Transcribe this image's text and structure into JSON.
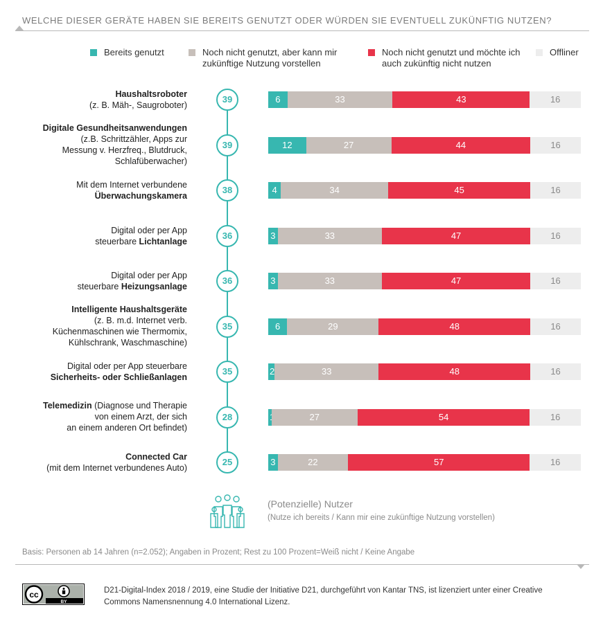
{
  "title": "WELCHE DIESER GERÄTE HABEN SIE BEREITS GENUTZT ODER WÜRDEN SIE EVENTUELL ZUKÜNFTIG NUTZEN?",
  "colors": {
    "bereits": "#37b7b0",
    "noch_nicht_vorstellbar": "#c7bfba",
    "nicht_nutzen": "#e8344a",
    "offliner": "#ededed",
    "accent": "#37b7b0"
  },
  "legend": [
    {
      "label": "Bereits genutzt"
    },
    {
      "label": "Noch nicht genutzt, aber kann mir zukünftige Nutzung vorstellen"
    },
    {
      "label": "Noch nicht genutzt und möchte ich auch zukünftig nicht nutzen"
    },
    {
      "label": "Offliner"
    }
  ],
  "chart_data": {
    "type": "bar",
    "orientation": "horizontal",
    "stacked": true,
    "unit": "Prozent",
    "legend_position": "top",
    "categories": [
      "Haushaltsroboter (z. B. Mäh-, Saugroboter)",
      "Digitale Gesundheitsanwendungen (z.B. Schrittzähler, Apps zur Messung v. Herzfreq., Blutdruck, Schlafüberwacher)",
      "Mit dem Internet verbundene Überwachungskamera",
      "Digital oder per App steuerbare Lichtanlage",
      "Digital oder per App steuerbare Heizungsanlage",
      "Intelligente Haushaltsgeräte (z. B. m.d. Internet verb. Küchenmaschinen wie Thermomix, Kühlschrank, Waschmaschine)",
      "Digital oder per App steuerbare Sicherheits- oder Schließanlagen",
      "Telemedizin (Diagnose und Therapie von einem Arzt, der sich an einem anderen Ort befindet)",
      "Connected Car (mit dem Internet verbundenes Auto)"
    ],
    "series": [
      {
        "name": "Bereits genutzt",
        "values": [
          6,
          12,
          4,
          3,
          3,
          6,
          2,
          1,
          3
        ]
      },
      {
        "name": "Noch nicht genutzt, aber kann mir zukünftige Nutzung vorstellen",
        "values": [
          33,
          27,
          34,
          33,
          33,
          29,
          33,
          27,
          22
        ]
      },
      {
        "name": "Noch nicht genutzt und möchte ich auch zukünftig nicht nutzen",
        "values": [
          43,
          44,
          45,
          47,
          47,
          48,
          48,
          54,
          57
        ]
      },
      {
        "name": "Offliner",
        "values": [
          16,
          16,
          16,
          16,
          16,
          16,
          16,
          16,
          16
        ]
      }
    ],
    "potenzielle_nutzer": [
      39,
      39,
      38,
      36,
      36,
      35,
      35,
      28,
      25
    ]
  },
  "rows": [
    {
      "label_html": "<b>Haushaltsroboter</b><br>(z. B. Mäh-, Saugroboter)"
    },
    {
      "label_html": "<b>Digitale Gesundheitsanwendungen</b><br>(z.B. Schrittzähler, Apps zur<br>Messung v. Herzfreq., Blutdruck,<br>Schlafüberwacher)"
    },
    {
      "label_html": "Mit dem Internet verbundene<br><b>Überwachungskamera</b>"
    },
    {
      "label_html": "Digital oder per App<br>steuerbare <b>Lichtanlage</b>"
    },
    {
      "label_html": "Digital oder per App<br>steuerbare <b>Heizungsanlage</b>"
    },
    {
      "label_html": "<b>Intelligente Haushaltsgeräte</b><br>(z. B. m.d. Internet verb.<br>Küchenmaschinen wie Thermomix,<br>Kühlschrank, Waschmaschine)"
    },
    {
      "label_html": "Digital oder per App steuerbare<br><b>Sicherheits- oder Schließanlagen</b>"
    },
    {
      "label_html": "<b>Telemedizin</b> (Diagnose und Therapie<br>von einem Arzt, der sich<br>an einem anderen Ort befindet)"
    },
    {
      "label_html": "<b>Connected Car</b><br>(mit dem Internet verbundenes Auto)"
    }
  ],
  "nutzer_title": "(Potenzielle) Nutzer",
  "nutzer_subtitle": "(Nutze ich bereits / Kann mir eine zukünftige Nutzung vorstellen)",
  "basis": "Basis: Personen ab 14 Jahren (n=2.052); Angaben in Prozent; Rest zu 100 Prozent=Weiß nicht / Keine Angabe",
  "license": "D21-Digital-Index 2018 / 2019, eine Studie der Initiative D21, durchgeführt von Kantar TNS, ist lizenziert unter einer Creative Commons Namensnennung 4.0 International Lizenz.",
  "cc_badge": {
    "text": "BY",
    "icon": "creative-commons-by-icon"
  }
}
